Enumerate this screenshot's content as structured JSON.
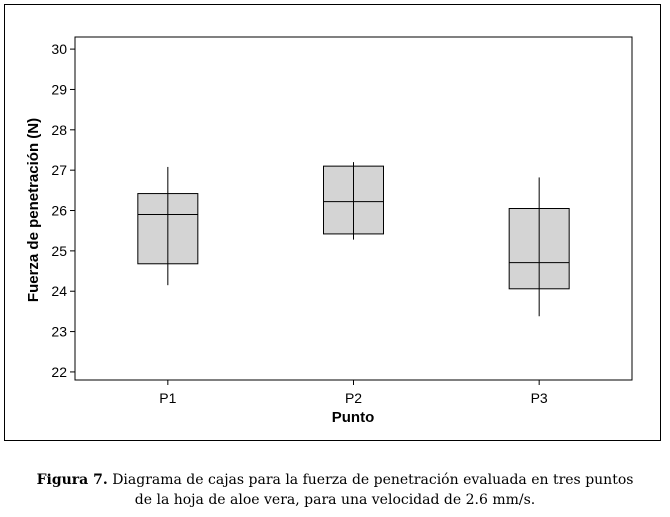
{
  "chart_data": {
    "type": "box",
    "xlabel": "Punto",
    "ylabel": "Fuerza de penetración (N)",
    "categories": [
      "P1",
      "P2",
      "P3"
    ],
    "ylim": [
      21.8,
      30.3
    ],
    "yticks": [
      22,
      23,
      24,
      25,
      26,
      27,
      28,
      29,
      30
    ],
    "boxes": [
      {
        "category": "P1",
        "min": 24.15,
        "q1": 24.68,
        "median": 25.9,
        "q3": 26.42,
        "max": 27.08
      },
      {
        "category": "P2",
        "min": 25.28,
        "q1": 25.42,
        "median": 26.22,
        "q3": 27.1,
        "max": 27.2
      },
      {
        "category": "P3",
        "min": 23.38,
        "q1": 24.06,
        "median": 24.71,
        "q3": 26.05,
        "max": 26.82
      }
    ],
    "box_fill": "#d4d4d4",
    "grid": false
  },
  "caption": {
    "label": "Figura 7.",
    "text_line1": "Diagrama de cajas para la fuerza de penetración evaluada en tres puntos",
    "text_line2": "de la hoja de aloe vera, para una velocidad de 2.6 mm/s."
  }
}
